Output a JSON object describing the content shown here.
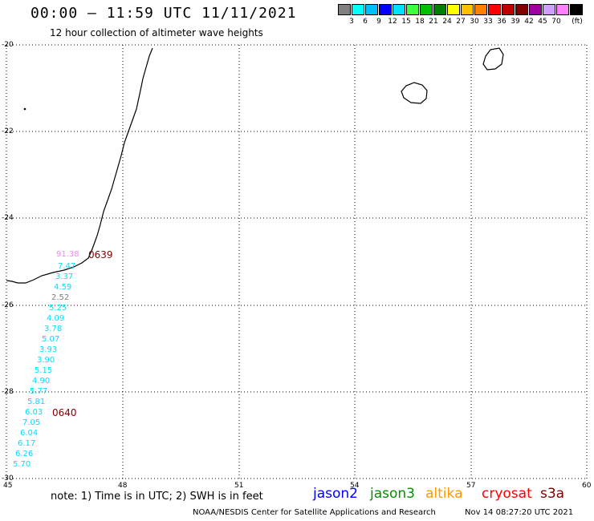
{
  "header": {
    "title": "00:00 – 11:59 UTC 11/11/2021",
    "subtitle": "12 hour collection of altimeter wave heights"
  },
  "legend": {
    "unit": "(ft)",
    "items": [
      {
        "label": "",
        "color": "#808080"
      },
      {
        "label": "3",
        "color": "#00ffff"
      },
      {
        "label": "6",
        "color": "#00bfff"
      },
      {
        "label": "9",
        "color": "#0000ff"
      },
      {
        "label": "12",
        "color": "#00e0ff"
      },
      {
        "label": "15",
        "color": "#40ff40"
      },
      {
        "label": "18",
        "color": "#00c000"
      },
      {
        "label": "21",
        "color": "#008000"
      },
      {
        "label": "24",
        "color": "#ffff00"
      },
      {
        "label": "27",
        "color": "#ffc000"
      },
      {
        "label": "30",
        "color": "#ff8000"
      },
      {
        "label": "33",
        "color": "#ff0000"
      },
      {
        "label": "36",
        "color": "#c00000"
      },
      {
        "label": "39",
        "color": "#800000"
      },
      {
        "label": "42",
        "color": "#a000a0"
      },
      {
        "label": "45",
        "color": "#d0a0ff"
      },
      {
        "label": "70",
        "color": "#ff80ff"
      },
      {
        "label": "",
        "color": "#000000"
      }
    ]
  },
  "axes": {
    "y_labels": [
      "-20",
      "-22",
      "-24",
      "-26",
      "-28",
      "-30"
    ],
    "x_labels": [
      "45",
      "48",
      "51",
      "54",
      "57",
      "60"
    ],
    "lat_range": [
      -30,
      -20
    ],
    "lon_range": [
      45,
      60
    ]
  },
  "wave_heights": [
    {
      "value": "91.38",
      "color": "#ff80ff"
    },
    {
      "value": "7.47",
      "color": "#00e0ff"
    },
    {
      "value": "3.37",
      "color": "#00e0ff"
    },
    {
      "value": "4.59",
      "color": "#00e0ff"
    },
    {
      "value": "2.52",
      "color": "#808080"
    },
    {
      "value": "5.25",
      "color": "#00e0ff"
    },
    {
      "value": "4.09",
      "color": "#00e0ff"
    },
    {
      "value": "3.78",
      "color": "#00e0ff"
    },
    {
      "value": "5.07",
      "color": "#00e0ff"
    },
    {
      "value": "3.93",
      "color": "#00e0ff"
    },
    {
      "value": "3.90",
      "color": "#00e0ff"
    },
    {
      "value": "5.15",
      "color": "#00e0ff"
    },
    {
      "value": "4.90",
      "color": "#00e0ff"
    },
    {
      "value": "5.77",
      "color": "#00e0ff"
    },
    {
      "value": "5.81",
      "color": "#00e0ff"
    },
    {
      "value": "6.03",
      "color": "#00e0ff"
    },
    {
      "value": "7.05",
      "color": "#00e0ff"
    },
    {
      "value": "6.04",
      "color": "#00e0ff"
    },
    {
      "value": "6.17",
      "color": "#00e0ff"
    },
    {
      "value": "6.26",
      "color": "#00e0ff"
    },
    {
      "value": "5.70",
      "color": "#00e0ff"
    }
  ],
  "pass_times": [
    "0639",
    "0640"
  ],
  "footer": {
    "note": "note: 1) Time is in UTC; 2) SWH is in feet",
    "satellites": [
      {
        "name": "jason2",
        "color": "#0000ff"
      },
      {
        "name": "jason3",
        "color": "#009000"
      },
      {
        "name": "altika",
        "color": "#ff9900"
      },
      {
        "name": "cryosat",
        "color": "#ff0000"
      },
      {
        "name": "s3a",
        "color": "#800000"
      }
    ],
    "credit": "NOAA/NESDIS Center for Satellite Applications and Research",
    "timestamp": "Nov 14 08:27:20 UTC 2021"
  }
}
